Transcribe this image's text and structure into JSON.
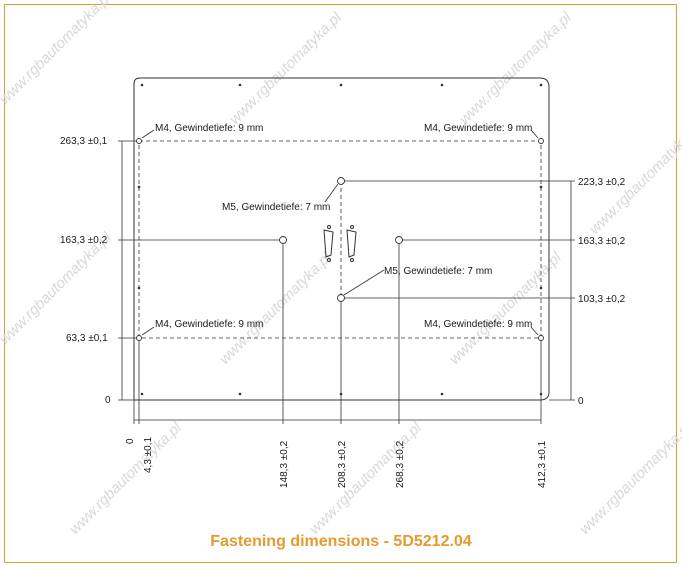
{
  "watermark_text": "www.rgbautomatyka.pl",
  "caption": "Fastening dimensions - 5D5212.04",
  "left_labels": {
    "y263": "263,3 ±0,1",
    "y163": "163,3 ±0,2",
    "y63": "63,3 ±0,1",
    "y0": "0"
  },
  "right_labels": {
    "y223": "223,3 ±0,2",
    "y163": "163,3 ±0,2",
    "y103": "103,3 ±0,2",
    "y0": "0"
  },
  "bottom_labels": {
    "x0": "0",
    "x4": "4,3 ±0,1",
    "x148": "148,3 ±0,2",
    "x208": "208,3 ±0,2",
    "x268": "268,3 ±0,2",
    "x412": "412,3 ±0,1"
  },
  "annotations": {
    "m4_top_left": "M4, Gewindetiefe: 9 mm",
    "m4_top_right": "M4, Gewindetiefe: 9 mm",
    "m4_bottom_left": "M4, Gewindetiefe: 9 mm",
    "m4_bottom_right": "M4, Gewindetiefe: 9 mm",
    "m5_upper": "M5, Gewindetiefe: 7 mm",
    "m5_lower": "M5, Gewindetiefe: 7 mm"
  },
  "accent_color": "#e39a2e"
}
